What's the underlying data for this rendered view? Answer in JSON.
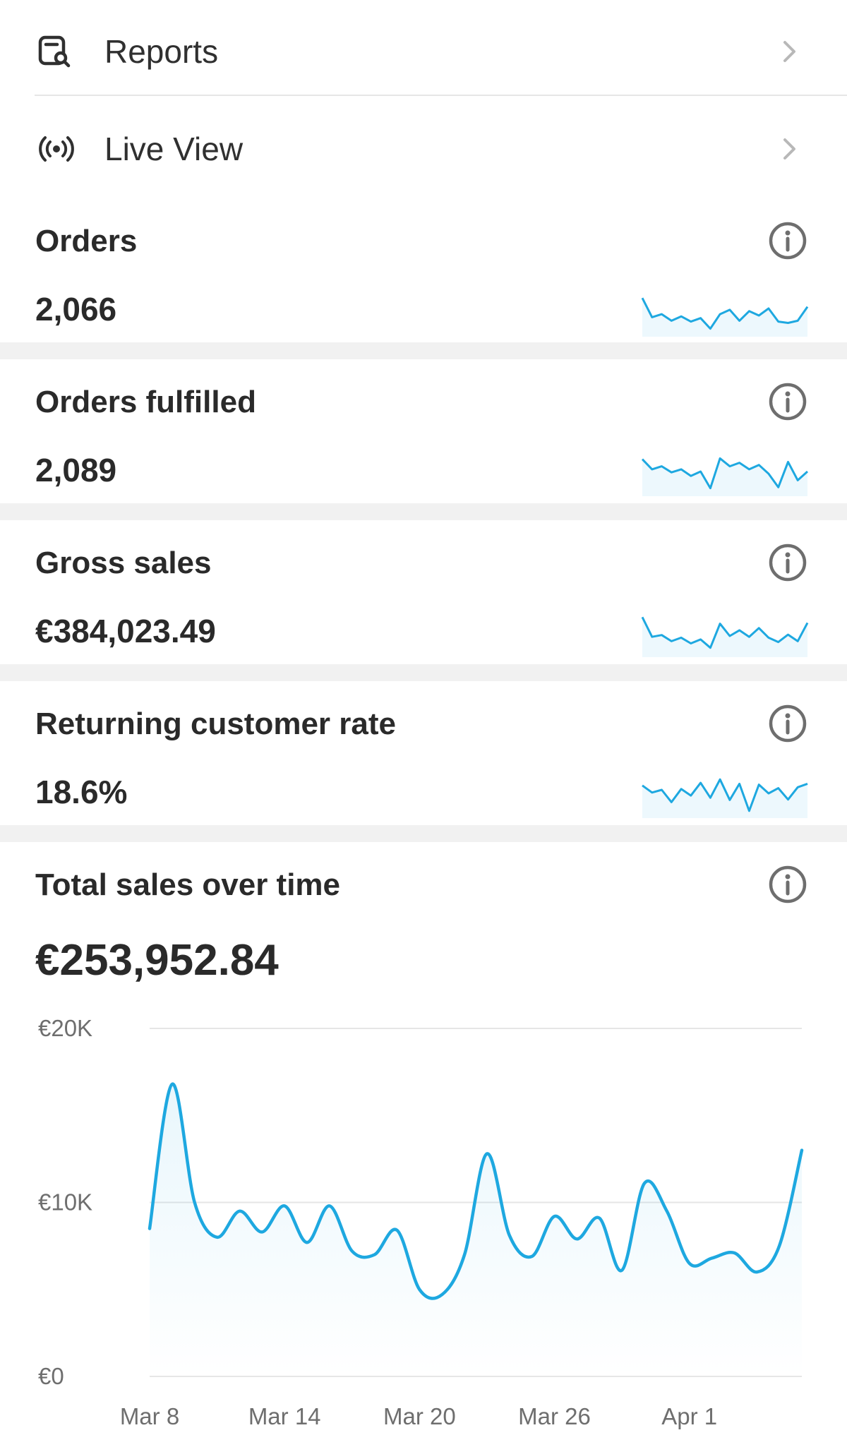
{
  "colors": {
    "accent": "#1ea8e0",
    "text": "#2a2a2a",
    "muted": "#6e6e6e",
    "separator": "#f1f1f1"
  },
  "nav": {
    "items": [
      {
        "label": "Reports",
        "icon": "reports-search-icon"
      },
      {
        "label": "Live View",
        "icon": "live-broadcast-icon"
      }
    ],
    "chevron_icon": "chevron-right-icon"
  },
  "metrics": [
    {
      "title": "Orders",
      "value": "2,066",
      "info_icon": "info-icon",
      "spark": [
        0.82,
        0.38,
        0.45,
        0.3,
        0.4,
        0.28,
        0.36,
        0.12,
        0.45,
        0.55,
        0.3,
        0.52,
        0.42,
        0.58,
        0.28,
        0.25,
        0.3,
        0.62
      ]
    },
    {
      "title": "Orders fulfilled",
      "value": "2,089",
      "info_icon": "info-icon",
      "spark": [
        0.78,
        0.55,
        0.62,
        0.48,
        0.55,
        0.4,
        0.5,
        0.12,
        0.8,
        0.62,
        0.7,
        0.55,
        0.65,
        0.45,
        0.14,
        0.72,
        0.3,
        0.5
      ]
    },
    {
      "title": "Gross sales",
      "value": "€384,023.49",
      "info_icon": "info-icon",
      "spark": [
        0.85,
        0.4,
        0.44,
        0.3,
        0.38,
        0.25,
        0.34,
        0.15,
        0.7,
        0.42,
        0.55,
        0.4,
        0.6,
        0.38,
        0.28,
        0.45,
        0.3,
        0.72
      ]
    },
    {
      "title": "Returning customer rate",
      "value": "18.6%",
      "info_icon": "info-icon",
      "spark": [
        0.68,
        0.52,
        0.58,
        0.3,
        0.6,
        0.45,
        0.74,
        0.4,
        0.82,
        0.35,
        0.72,
        0.1,
        0.7,
        0.5,
        0.62,
        0.36,
        0.64,
        0.72
      ]
    }
  ],
  "total_sales": {
    "title": "Total sales over time",
    "value": "€253,952.84",
    "info_icon": "info-icon"
  },
  "chart_data": {
    "type": "area",
    "title": "Total sales over time",
    "xlabel": "",
    "ylabel": "",
    "ylim": [
      0,
      20000
    ],
    "yticks": [
      {
        "value": 0,
        "label": "€0"
      },
      {
        "value": 10000,
        "label": "€10K"
      },
      {
        "value": 20000,
        "label": "€20K"
      }
    ],
    "xticks": [
      {
        "index": 0,
        "label": "Mar 8"
      },
      {
        "index": 6,
        "label": "Mar 14"
      },
      {
        "index": 12,
        "label": "Mar 20"
      },
      {
        "index": 18,
        "label": "Mar 26"
      },
      {
        "index": 24,
        "label": "Apr 1"
      }
    ],
    "grid": true,
    "x": [
      "Mar 8",
      "Mar 9",
      "Mar 10",
      "Mar 11",
      "Mar 12",
      "Mar 13",
      "Mar 14",
      "Mar 15",
      "Mar 16",
      "Mar 17",
      "Mar 18",
      "Mar 19",
      "Mar 20",
      "Mar 21",
      "Mar 22",
      "Mar 23",
      "Mar 24",
      "Mar 25",
      "Mar 26",
      "Mar 27",
      "Mar 28",
      "Mar 29",
      "Mar 30",
      "Mar 31",
      "Apr 1",
      "Apr 2",
      "Apr 3",
      "Apr 4",
      "Apr 5",
      "Apr 6"
    ],
    "values": [
      8500,
      16800,
      10000,
      8000,
      9500,
      8300,
      9800,
      7700,
      9800,
      7200,
      7000,
      8400,
      5000,
      4700,
      7000,
      12800,
      8100,
      6900,
      9200,
      7900,
      9100,
      6100,
      11100,
      9500,
      6500,
      6800,
      7100,
      6000,
      7500,
      13000
    ],
    "series": [
      {
        "name": "",
        "color": "#1ea8e0"
      }
    ]
  }
}
